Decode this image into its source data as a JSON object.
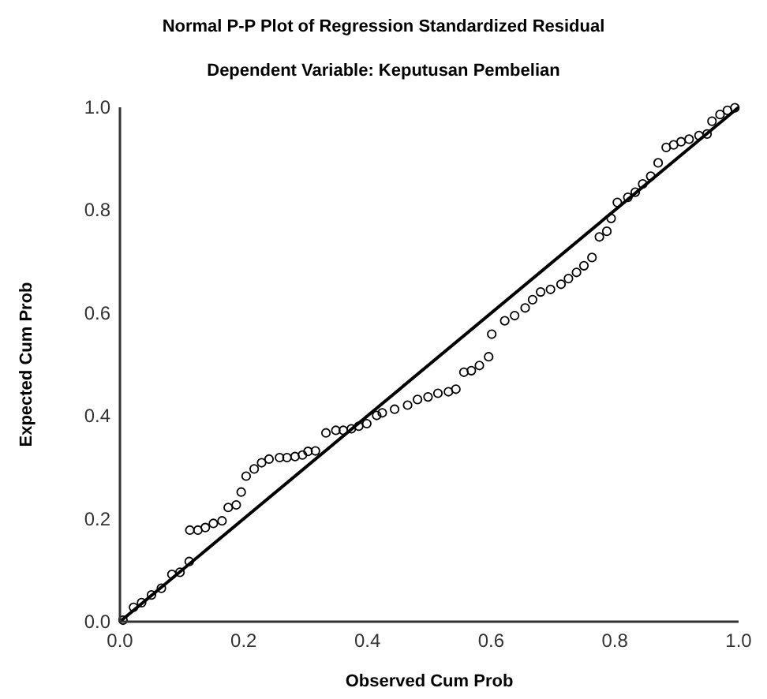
{
  "chart_data": {
    "type": "scatter",
    "title": "Normal P-P Plot of Regression Standardized Residual",
    "subtitle": "Dependent Variable: Keputusan Pembelian",
    "xlabel": "Observed Cum Prob",
    "ylabel": "Expected Cum Prob",
    "xlim": [
      0,
      1
    ],
    "ylim": [
      0,
      1
    ],
    "xticks": [
      {
        "value": 0,
        "label": "0.0"
      },
      {
        "value": 0.2,
        "label": "0.2"
      },
      {
        "value": 0.4,
        "label": "0.4"
      },
      {
        "value": 0.6,
        "label": "0.6"
      },
      {
        "value": 0.8,
        "label": "0.8"
      },
      {
        "value": 1,
        "label": "1.0"
      }
    ],
    "yticks": [
      {
        "value": 0,
        "label": "0.0"
      },
      {
        "value": 0.2,
        "label": "0.2"
      },
      {
        "value": 0.4,
        "label": "0.4"
      },
      {
        "value": 0.6,
        "label": "0.6"
      },
      {
        "value": 0.8,
        "label": "0.8"
      },
      {
        "value": 1,
        "label": "1.0"
      }
    ],
    "grid": false,
    "series": [
      {
        "color": "#000000",
        "marker": "circle",
        "x": [
          0.005,
          0.022,
          0.035,
          0.051,
          0.067,
          0.084,
          0.097,
          0.112,
          0.113,
          0.126,
          0.138,
          0.151,
          0.165,
          0.175,
          0.188,
          0.196,
          0.204,
          0.217,
          0.229,
          0.241,
          0.258,
          0.27,
          0.283,
          0.295,
          0.304,
          0.316,
          0.333,
          0.349,
          0.361,
          0.374,
          0.386,
          0.399,
          0.415,
          0.424,
          0.444,
          0.465,
          0.481,
          0.498,
          0.514,
          0.531,
          0.543,
          0.556,
          0.568,
          0.581,
          0.596,
          0.601,
          0.622,
          0.638,
          0.655,
          0.667,
          0.68,
          0.696,
          0.713,
          0.725,
          0.738,
          0.75,
          0.763,
          0.775,
          0.787,
          0.794,
          0.804,
          0.821,
          0.833,
          0.845,
          0.858,
          0.87,
          0.883,
          0.895,
          0.907,
          0.92,
          0.936,
          0.949,
          0.957,
          0.97,
          0.982,
          0.994
        ],
        "values": [
          0.003,
          0.028,
          0.037,
          0.052,
          0.065,
          0.092,
          0.096,
          0.117,
          0.178,
          0.178,
          0.183,
          0.191,
          0.196,
          0.222,
          0.227,
          0.252,
          0.283,
          0.297,
          0.309,
          0.316,
          0.319,
          0.319,
          0.321,
          0.324,
          0.331,
          0.332,
          0.367,
          0.372,
          0.372,
          0.375,
          0.38,
          0.385,
          0.401,
          0.406,
          0.413,
          0.421,
          0.432,
          0.437,
          0.444,
          0.447,
          0.452,
          0.485,
          0.488,
          0.498,
          0.515,
          0.559,
          0.585,
          0.595,
          0.61,
          0.626,
          0.641,
          0.646,
          0.656,
          0.667,
          0.679,
          0.692,
          0.708,
          0.748,
          0.759,
          0.784,
          0.815,
          0.825,
          0.835,
          0.851,
          0.866,
          0.892,
          0.922,
          0.927,
          0.933,
          0.938,
          0.945,
          0.948,
          0.973,
          0.986,
          0.994,
          0.999
        ]
      },
      {
        "type": "line",
        "color": "#000000",
        "line_style": "solid",
        "x": [
          0,
          1
        ],
        "values": [
          0,
          1
        ]
      }
    ]
  }
}
